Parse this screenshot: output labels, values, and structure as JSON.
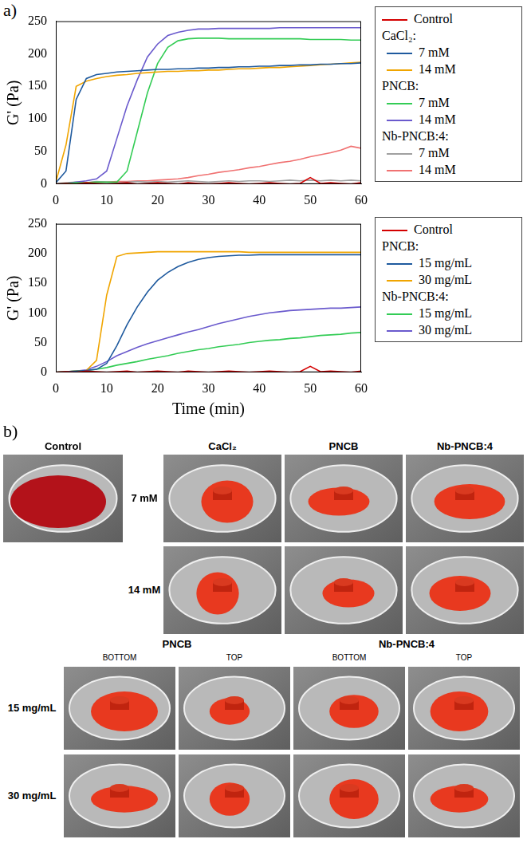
{
  "chart_data": [
    {
      "type": "line",
      "y_label": "G' (Pa)",
      "x": [
        0,
        2,
        4,
        6,
        8,
        10,
        12,
        14,
        16,
        18,
        20,
        22,
        24,
        26,
        28,
        30,
        32,
        34,
        36,
        38,
        40,
        42,
        44,
        46,
        48,
        50,
        52,
        54,
        56,
        58,
        60
      ],
      "xlim": [
        0,
        60
      ],
      "xticks": [
        0,
        10,
        20,
        30,
        40,
        50,
        60
      ],
      "ylim": [
        0,
        250
      ],
      "yticks": [
        0,
        50,
        100,
        150,
        200,
        250
      ],
      "grid": false,
      "legend": "right",
      "series": [
        {
          "name": "Control",
          "color": "#d40000",
          "values": [
            0,
            1,
            0,
            2,
            1,
            0,
            1,
            2,
            0,
            1,
            2,
            1,
            0,
            2,
            1,
            0,
            1,
            2,
            1,
            0,
            1,
            2,
            1,
            0,
            1,
            10,
            1,
            2,
            1,
            0,
            2
          ]
        },
        {
          "name": "7 mM",
          "group": "CaCl₂:",
          "color": "#1f5a9e",
          "values": [
            2,
            20,
            130,
            162,
            168,
            170,
            172,
            173,
            174,
            175,
            176,
            176,
            177,
            177,
            178,
            178,
            179,
            179,
            180,
            180,
            181,
            181,
            182,
            182,
            183,
            183,
            184,
            184,
            185,
            185,
            186
          ]
        },
        {
          "name": "14 mM",
          "group": "CaCl₂:",
          "color": "#f0a500",
          "values": [
            3,
            60,
            150,
            158,
            162,
            165,
            167,
            168,
            170,
            171,
            172,
            173,
            173,
            174,
            174,
            175,
            175,
            176,
            177,
            177,
            178,
            179,
            179,
            180,
            181,
            182,
            183,
            184,
            185,
            186,
            187
          ]
        },
        {
          "name": "7 mM",
          "group": "PNCB:",
          "color": "#33cc55",
          "values": [
            0,
            1,
            2,
            2,
            3,
            3,
            3,
            20,
            80,
            140,
            185,
            210,
            220,
            223,
            224,
            224,
            224,
            223,
            223,
            223,
            223,
            223,
            223,
            223,
            223,
            222,
            222,
            222,
            222,
            221,
            221
          ]
        },
        {
          "name": "14 mM",
          "group": "PNCB:",
          "color": "#6a5acd",
          "values": [
            0,
            1,
            3,
            5,
            8,
            20,
            70,
            120,
            160,
            195,
            215,
            228,
            233,
            236,
            238,
            238,
            239,
            239,
            239,
            239,
            239,
            239,
            240,
            240,
            240,
            240,
            240,
            240,
            240,
            240,
            240
          ]
        },
        {
          "name": "7 mM",
          "group": "Nb-PNCB:4:",
          "color": "#a0a0a0",
          "values": [
            1,
            2,
            3,
            2,
            4,
            3,
            2,
            3,
            4,
            3,
            4,
            3,
            4,
            5,
            4,
            3,
            4,
            5,
            4,
            5,
            5,
            4,
            5,
            6,
            5,
            6,
            5,
            6,
            5,
            6,
            5
          ]
        },
        {
          "name": "14 mM",
          "group": "Nb-PNCB:4:",
          "color": "#f07272",
          "values": [
            0,
            1,
            2,
            2,
            3,
            3,
            4,
            4,
            5,
            5,
            6,
            7,
            8,
            10,
            13,
            15,
            18,
            20,
            22,
            25,
            27,
            30,
            33,
            35,
            38,
            42,
            45,
            48,
            52,
            58,
            55
          ]
        }
      ]
    },
    {
      "type": "line",
      "y_label": "G' (Pa)",
      "x_label": "Time (min)",
      "x": [
        0,
        2,
        4,
        6,
        8,
        10,
        12,
        14,
        16,
        18,
        20,
        22,
        24,
        26,
        28,
        30,
        32,
        34,
        36,
        38,
        40,
        42,
        44,
        46,
        48,
        50,
        52,
        54,
        56,
        58,
        60
      ],
      "xlim": [
        0,
        60
      ],
      "xticks": [
        0,
        10,
        20,
        30,
        40,
        50,
        60
      ],
      "ylim": [
        0,
        250
      ],
      "yticks": [
        0,
        50,
        100,
        150,
        200,
        250
      ],
      "grid": false,
      "legend": "right",
      "series": [
        {
          "name": "Control",
          "color": "#d40000",
          "values": [
            0,
            1,
            0,
            2,
            1,
            0,
            1,
            2,
            0,
            1,
            2,
            1,
            0,
            2,
            1,
            0,
            1,
            2,
            1,
            0,
            1,
            2,
            1,
            0,
            1,
            10,
            1,
            2,
            1,
            0,
            2
          ]
        },
        {
          "name": "15 mg/mL",
          "group": "PNCB:",
          "color": "#1f5a9e",
          "values": [
            0,
            1,
            2,
            3,
            5,
            15,
            45,
            80,
            110,
            135,
            155,
            168,
            178,
            185,
            190,
            193,
            195,
            196,
            197,
            197,
            198,
            198,
            198,
            198,
            198,
            198,
            198,
            198,
            198,
            198,
            198
          ]
        },
        {
          "name": "30 mg/mL",
          "group": "PNCB:",
          "color": "#f0a500",
          "values": [
            0,
            1,
            2,
            3,
            20,
            130,
            195,
            200,
            201,
            202,
            203,
            203,
            203,
            203,
            203,
            203,
            203,
            203,
            203,
            202,
            202,
            202,
            202,
            202,
            202,
            202,
            202,
            202,
            202,
            202,
            202
          ]
        },
        {
          "name": "15 mg/mL",
          "group": "Nb-PNCB:4:",
          "color": "#33cc55",
          "values": [
            0,
            1,
            2,
            3,
            5,
            8,
            12,
            15,
            18,
            22,
            25,
            28,
            32,
            35,
            38,
            40,
            43,
            45,
            47,
            50,
            52,
            54,
            55,
            57,
            58,
            60,
            62,
            63,
            64,
            66,
            67
          ]
        },
        {
          "name": "30 mg/mL",
          "group": "Nb-PNCB:4:",
          "color": "#6a5acd",
          "values": [
            0,
            1,
            2,
            4,
            10,
            18,
            28,
            35,
            42,
            48,
            53,
            58,
            63,
            68,
            72,
            77,
            82,
            86,
            90,
            94,
            97,
            100,
            102,
            104,
            105,
            106,
            107,
            108,
            108,
            109,
            110
          ]
        }
      ]
    }
  ],
  "panel_labels": [
    "a)",
    "b)"
  ],
  "photos": {
    "control": "Control",
    "top_columns": [
      "CaCl₂",
      "PNCB",
      "Nb-PNCB:4"
    ],
    "top_rows": [
      "7 mM",
      "14 mM"
    ],
    "bottom_groups": [
      {
        "title": "PNCB",
        "columns": [
          "BOTTOM",
          "TOP"
        ]
      },
      {
        "title": "Nb-PNCB:4",
        "columns": [
          "BOTTOM",
          "TOP"
        ]
      }
    ],
    "bottom_rows": [
      "15 mg/mL",
      "30 mg/mL"
    ]
  }
}
